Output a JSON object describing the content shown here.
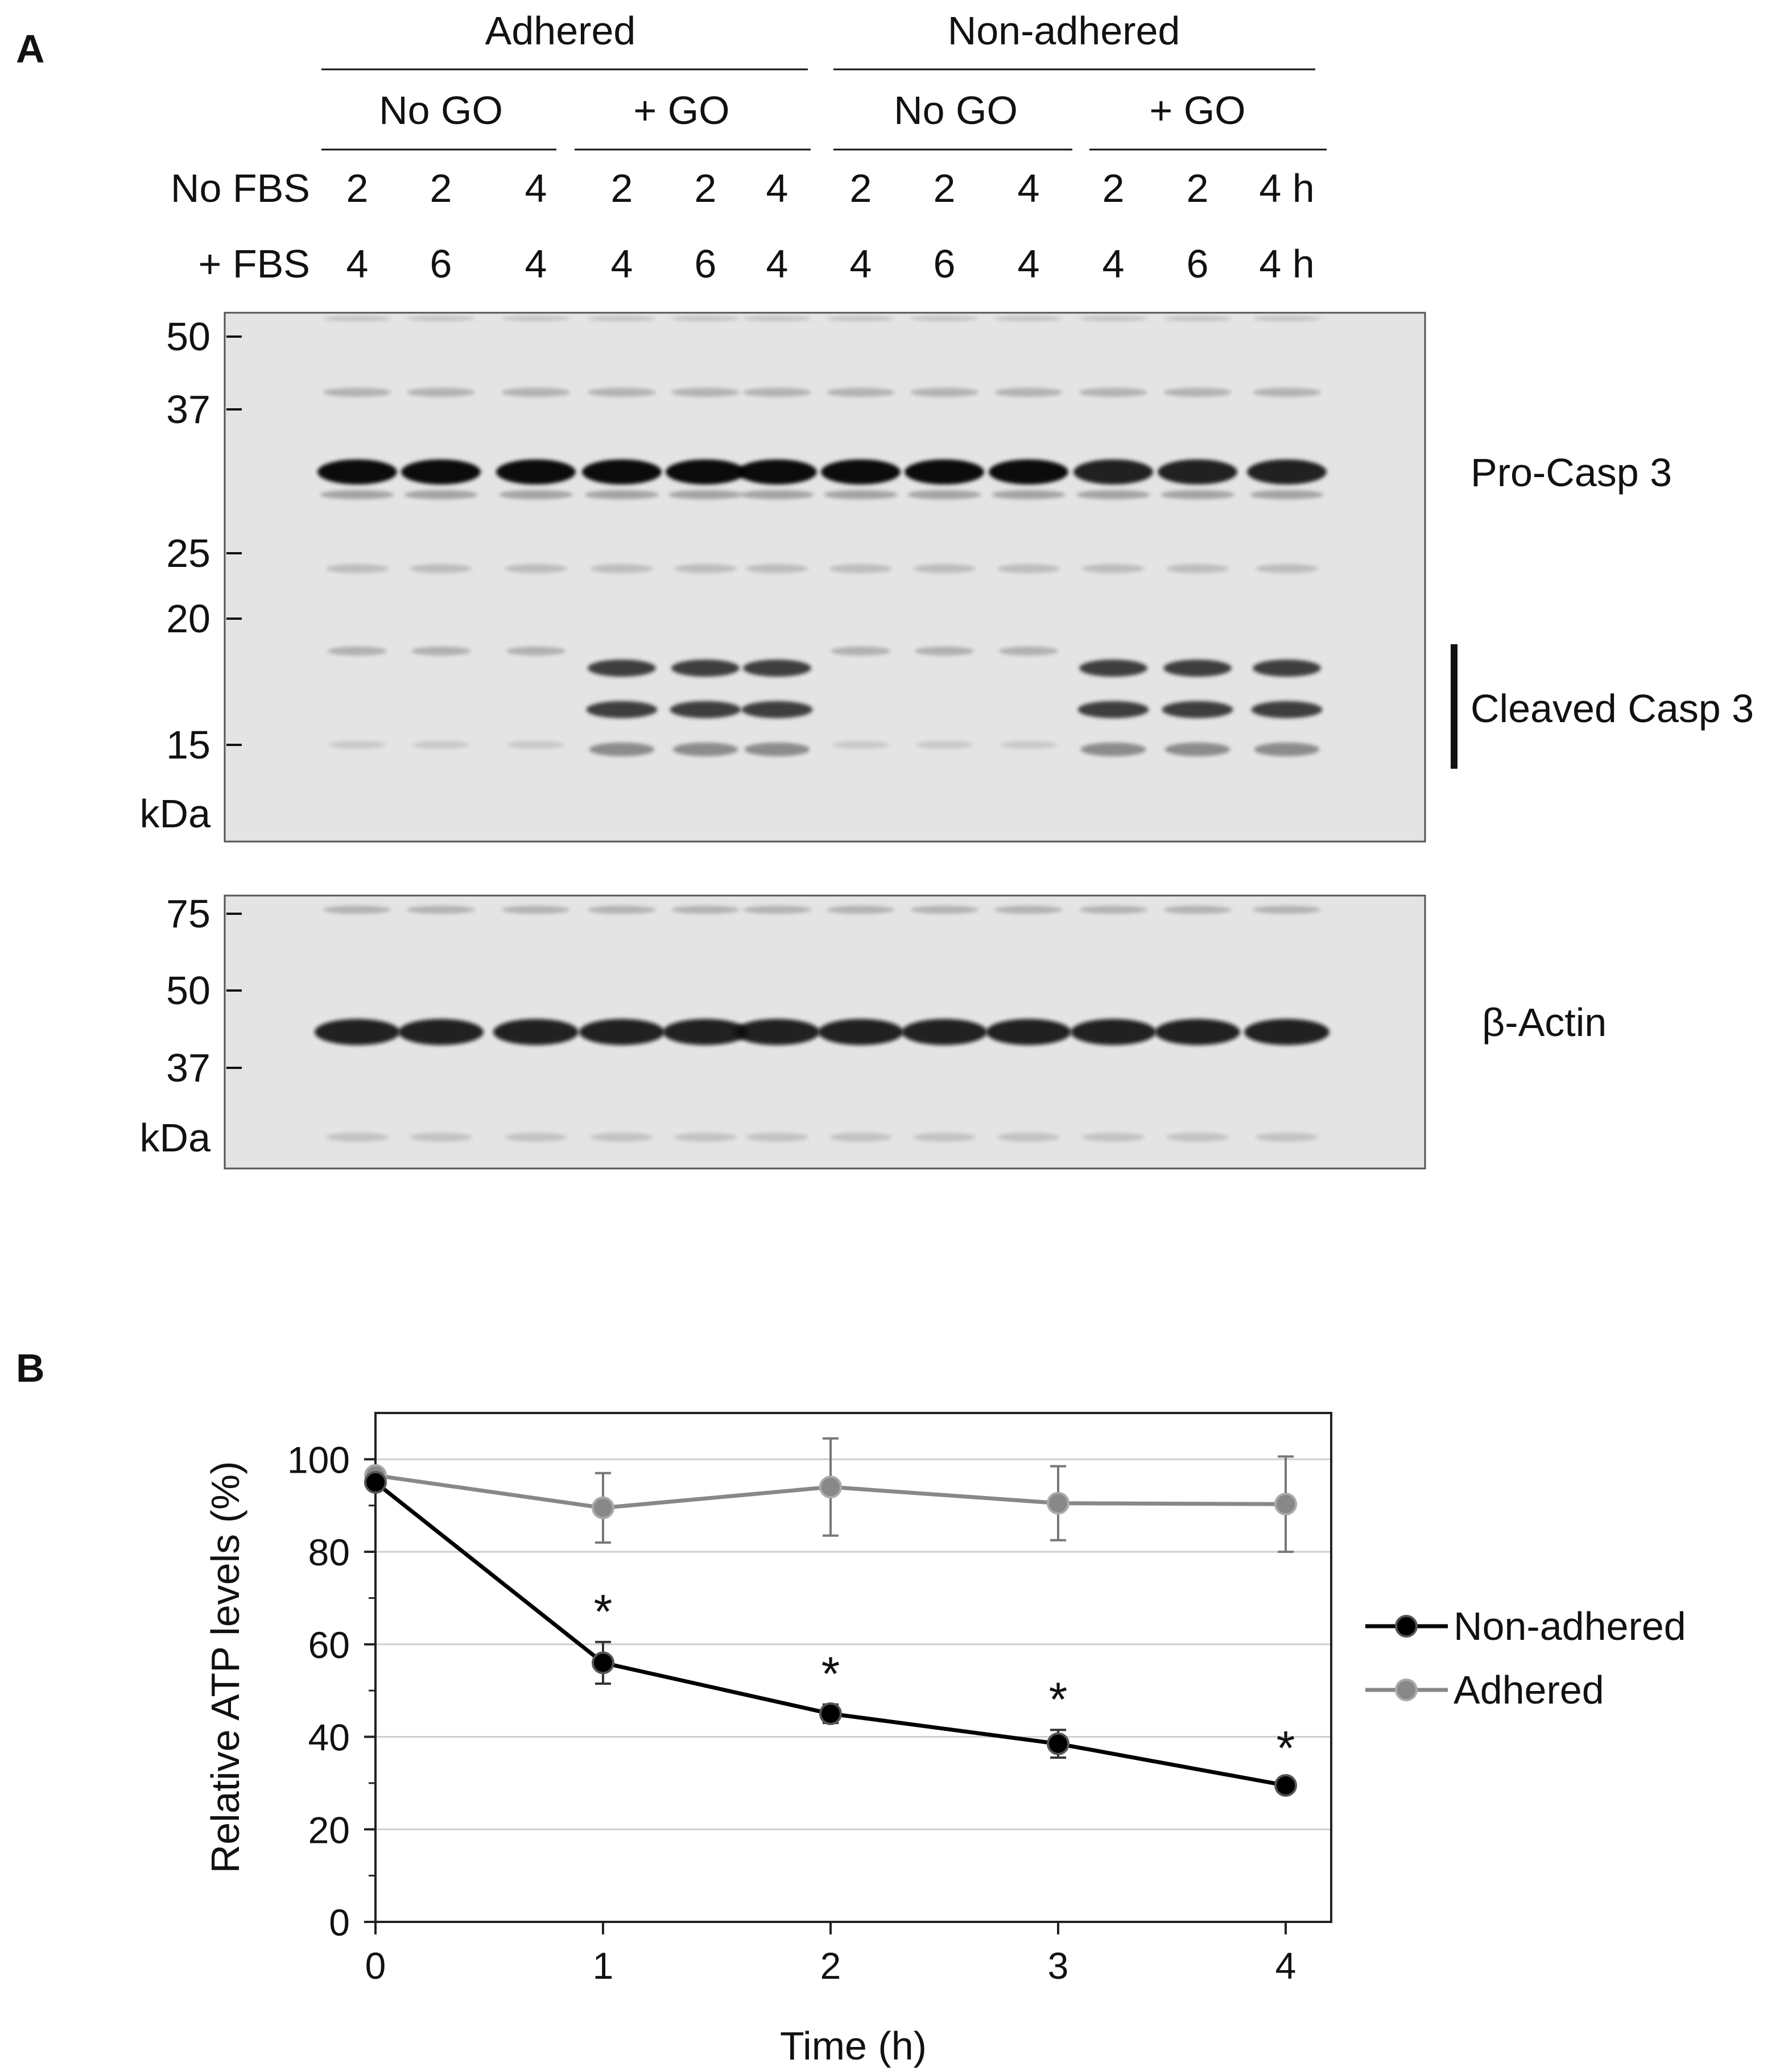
{
  "panel_a": {
    "label": "A",
    "groups": {
      "top": [
        {
          "name": "Adhered"
        },
        {
          "name": "Non-adhered"
        }
      ],
      "sub": [
        {
          "name": "No GO"
        },
        {
          "name": "+ GO"
        },
        {
          "name": "No GO"
        },
        {
          "name": "+ GO"
        }
      ]
    },
    "rows": [
      {
        "label": "No FBS",
        "values": [
          "2",
          "2",
          "4",
          "2",
          "2",
          "4",
          "2",
          "2",
          "4",
          "2",
          "2",
          "4 h"
        ]
      },
      {
        "label": "+ FBS",
        "values": [
          "4",
          "6",
          "4",
          "4",
          "6",
          "4",
          "4",
          "6",
          "4",
          "4",
          "6",
          "4 h"
        ]
      }
    ],
    "blot_top": {
      "markers": [
        "50",
        "37",
        "25",
        "20",
        "15"
      ],
      "unit": "kDa",
      "bands": {
        "pro": "Pro-Casp 3",
        "cleaved": "Cleaved Casp 3"
      }
    },
    "blot_bottom": {
      "markers": [
        "75",
        "50",
        "37"
      ],
      "unit": "kDa",
      "band": "β-Actin"
    }
  },
  "panel_b": {
    "label": "B"
  },
  "chart_data": {
    "type": "line",
    "xlabel": "Time (h)",
    "ylabel": "Relative ATP levels (%)",
    "xlim": [
      0,
      4
    ],
    "ylim": [
      0,
      110
    ],
    "xticks": [
      "0",
      "1",
      "2",
      "3",
      "4"
    ],
    "yticks": [
      "0",
      "20",
      "40",
      "60",
      "80",
      "100"
    ],
    "grid": "horizontal",
    "legend_position": "right",
    "series": [
      {
        "name": "Non-adhered",
        "color": "#000000",
        "x": [
          0,
          1,
          2,
          3,
          4
        ],
        "y": [
          95,
          56,
          45,
          38.5,
          29.5
        ],
        "err": [
          1.5,
          4.5,
          2,
          3,
          1.5
        ],
        "significance": [
          "",
          "*",
          "*",
          "*",
          "*"
        ]
      },
      {
        "name": "Adhered",
        "color": "#888888",
        "x": [
          0,
          1,
          2,
          3,
          4
        ],
        "y": [
          96.5,
          89.5,
          94,
          90.5,
          90.3
        ],
        "err": [
          1.5,
          7.5,
          10.5,
          8,
          10.3
        ],
        "significance": [
          "",
          "",
          "",
          "",
          ""
        ]
      }
    ]
  }
}
